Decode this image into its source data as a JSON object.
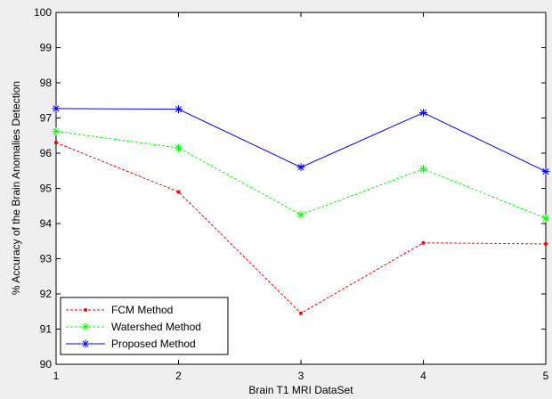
{
  "chart_data": {
    "type": "line",
    "title": "",
    "xlabel": "Brain T1 MRI DataSet",
    "ylabel": "% Accuracy of the Brain Anomalies Detection",
    "x": [
      1,
      2,
      3,
      4,
      5
    ],
    "xlim": [
      1,
      5
    ],
    "ylim": [
      90,
      100
    ],
    "xticks": [
      "1",
      "2",
      "3",
      "4",
      "5"
    ],
    "yticks": [
      "90",
      "91",
      "92",
      "93",
      "94",
      "95",
      "96",
      "97",
      "98",
      "99",
      "100"
    ],
    "grid": false,
    "legend_position": "bottom-left",
    "series": [
      {
        "name": "FCM Method",
        "values": [
          96.3,
          94.9,
          91.45,
          93.45,
          93.42
        ],
        "color": "#ff0000",
        "line_style": "dashed",
        "marker": "dot"
      },
      {
        "name": "Watershed Method",
        "values": [
          96.62,
          96.15,
          94.25,
          95.55,
          94.15
        ],
        "color": "#00ff00",
        "line_style": "dashed",
        "marker": "star"
      },
      {
        "name": "Proposed Method",
        "values": [
          97.27,
          97.25,
          95.6,
          97.15,
          95.48
        ],
        "color": "#0000ff",
        "line_style": "solid",
        "marker": "star"
      }
    ]
  }
}
